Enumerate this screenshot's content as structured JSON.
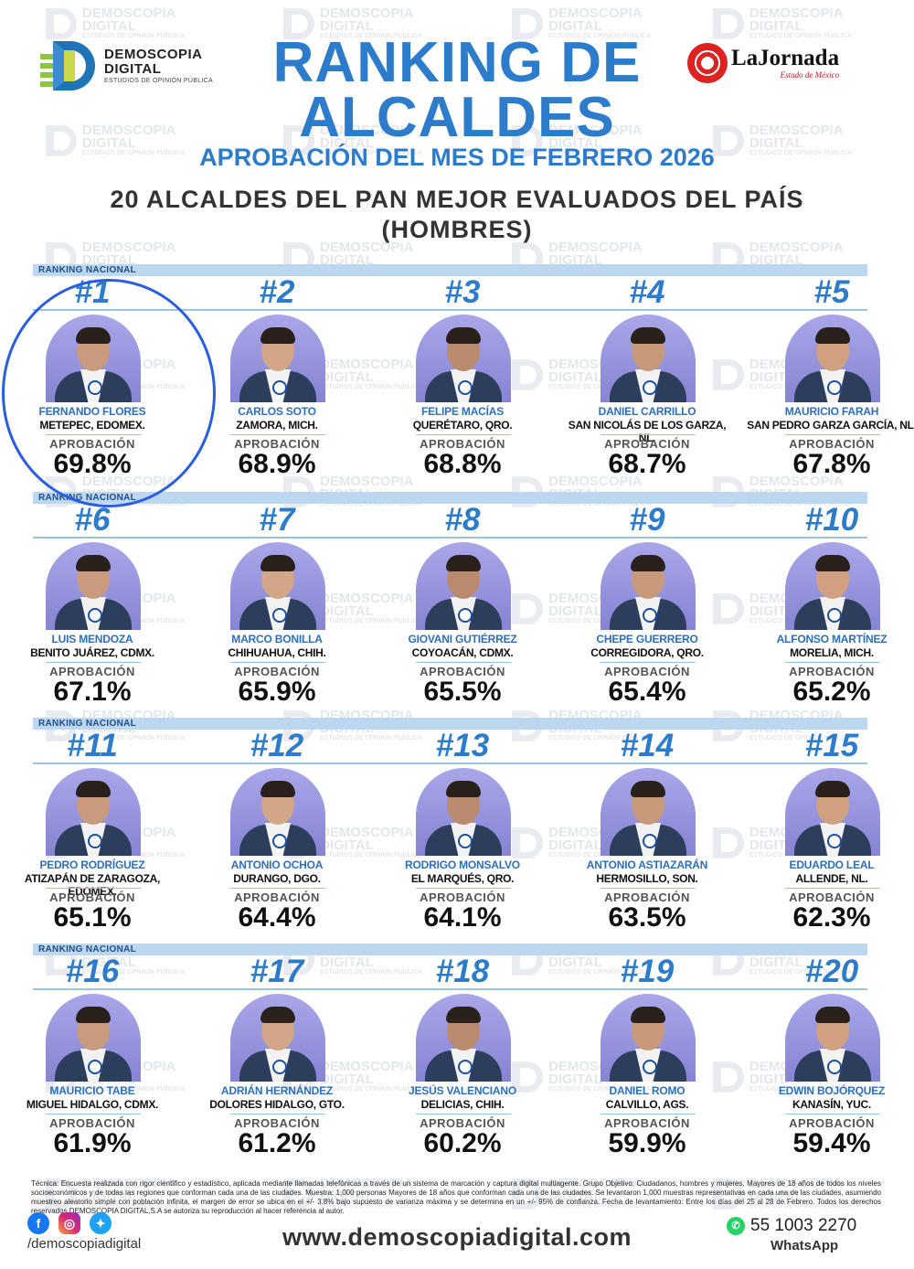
{
  "brand": {
    "logo_line1": "DEMOSCOPIA",
    "logo_line2": "DIGITAL",
    "logo_tagline": "ESTUDIOS DE OPINIÓN PÚBLICA",
    "partner_name": "LaJornada",
    "partner_sub": "Estado de México"
  },
  "header": {
    "title_line1": "RANKING DE",
    "title_line2": "ALCALDES",
    "subtitle": "APROBACIÓN DEL MES DE FEBRERO 2026",
    "heading_line1": "20 ALCALDES DEL PAN MEJOR EVALUADOS DEL PAÍS",
    "heading_line2": "(HOMBRES)"
  },
  "ranking_label": "RANKING NACIONAL",
  "approval_label": "APROBACIÓN",
  "mayors": [
    {
      "rank": "#1",
      "name": "FERNANDO FLORES",
      "city": "METEPEC, EDOMEX.",
      "approval": "69.8%"
    },
    {
      "rank": "#2",
      "name": "CARLOS SOTO",
      "city": "ZAMORA, MICH.",
      "approval": "68.9%"
    },
    {
      "rank": "#3",
      "name": "FELIPE MACÍAS",
      "city": "QUERÉTARO, QRO.",
      "approval": "68.8%"
    },
    {
      "rank": "#4",
      "name": "DANIEL CARRILLO",
      "city": "SAN NICOLÁS DE LOS GARZA, NL.",
      "approval": "68.7%"
    },
    {
      "rank": "#5",
      "name": "MAURICIO FARAH",
      "city": "SAN PEDRO GARZA GARCÍA, NL.",
      "approval": "67.8%"
    },
    {
      "rank": "#6",
      "name": "LUIS MENDOZA",
      "city": "BENITO JUÁREZ, CDMX.",
      "approval": "67.1%"
    },
    {
      "rank": "#7",
      "name": "MARCO BONILLA",
      "city": "CHIHUAHUA, CHIH.",
      "approval": "65.9%"
    },
    {
      "rank": "#8",
      "name": "GIOVANI GUTIÉRREZ",
      "city": "COYOACÁN, CDMX.",
      "approval": "65.5%"
    },
    {
      "rank": "#9",
      "name": "CHEPE GUERRERO",
      "city": "CORREGIDORA, QRO.",
      "approval": "65.4%"
    },
    {
      "rank": "#10",
      "name": "ALFONSO MARTÍNEZ",
      "city": "MORELIA, MICH.",
      "approval": "65.2%"
    },
    {
      "rank": "#11",
      "name": "PEDRO RODRÍGUEZ",
      "city": "ATIZAPÁN DE ZARAGOZA, EDOMEX.",
      "approval": "65.1%"
    },
    {
      "rank": "#12",
      "name": "ANTONIO OCHOA",
      "city": "DURANGO, DGO.",
      "approval": "64.4%"
    },
    {
      "rank": "#13",
      "name": "RODRIGO MONSALVO",
      "city": "EL MARQUÉS, QRO.",
      "approval": "64.1%"
    },
    {
      "rank": "#14",
      "name": "ANTONIO ASTIAZARÁN",
      "city": "HERMOSILLO, SON.",
      "approval": "63.5%"
    },
    {
      "rank": "#15",
      "name": "EDUARDO LEAL",
      "city": "ALLENDE, NL.",
      "approval": "62.3%"
    },
    {
      "rank": "#16",
      "name": "MAURICIO TABE",
      "city": "MIGUEL HIDALGO, CDMX.",
      "approval": "61.9%"
    },
    {
      "rank": "#17",
      "name": "ADRIÁN HERNÁNDEZ",
      "city": "DOLORES HIDALGO, GTO.",
      "approval": "61.2%"
    },
    {
      "rank": "#18",
      "name": "JESÚS VALENCIANO",
      "city": "DELICIAS, CHIH.",
      "approval": "60.2%"
    },
    {
      "rank": "#19",
      "name": "DANIEL ROMO",
      "city": "CALVILLO, AGS.",
      "approval": "59.9%"
    },
    {
      "rank": "#20",
      "name": "EDWIN BOJÓRQUEZ",
      "city": "KANASÍN, YUC.",
      "approval": "59.4%"
    }
  ],
  "footer": {
    "tecnica": "Técnica: Encuesta realizada con rigor científico y estadístico, aplicada mediante llamadas telefónicas a través de un sistema de marcación y captura digital multiagente. Grupo Objetivo: Ciudadanos, hombres y mujeres, Mayores de 18 años de todos los niveles socioeconómicos y de todas las regiones que conforman cada una de las ciudades. Muestra: 1,000 personas Mayores de 18 años que conforman cada una de las ciudades. Se levantaron 1,000 muestras representativas en cada una de las ciudades, asumiendo muestreo aleatorio simple con población infinita, el margen de error se ubica en el +/- 3.8% bajo supuesto de varianza máxima y se determina en un +/- 95% de confianza. Fecha de levantamiento: Entre los días del 25 al 28 de Febrero. Todos los derechos reservados DEMOSCOPIA DIGITAL,S.A se autoriza su reproducción al hacer referencia al autor.",
    "handle": "/demoscopiadigital",
    "website": "www.demoscopiadigital.com",
    "phone": "55 1003 2270",
    "whatsapp_label": "WhatsApp"
  },
  "colors": {
    "accent_blue": "#2d7ccc",
    "highlight_circle": "#2a5ee0",
    "photo_bg": "#8684d4"
  }
}
